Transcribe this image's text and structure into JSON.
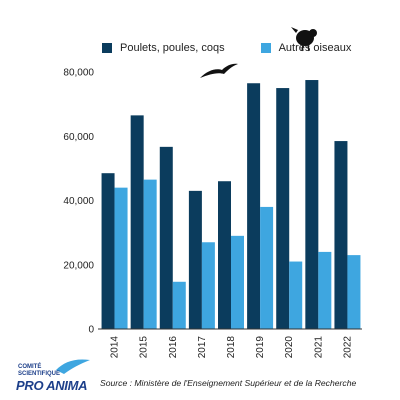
{
  "chart_data": {
    "type": "bar",
    "categories": [
      "2014",
      "2015",
      "2016",
      "2017",
      "2018",
      "2019",
      "2020",
      "2021",
      "2022"
    ],
    "series": [
      {
        "name": "Poulets, poules, coqs",
        "color": "#0b3c5d",
        "values": [
          48500,
          66500,
          56700,
          43000,
          46000,
          76500,
          75000,
          77500,
          58500
        ]
      },
      {
        "name": "Autres oiseaux",
        "color": "#3ea6e0",
        "values": [
          44000,
          46500,
          14700,
          27000,
          29000,
          38000,
          21000,
          24000,
          23000
        ]
      }
    ],
    "ylim": [
      0,
      80000
    ],
    "y_ticks": [
      "0",
      "20,000",
      "40,000",
      "60,000",
      "80,000"
    ],
    "grid": false,
    "legend": "top"
  },
  "source": "Source : Ministère de l'Enseignement Supérieur et de la Recherche",
  "logo": {
    "line1": "COMITÉ",
    "line2": "SCIENTIFIQUE",
    "line3": "PRO ANIMA"
  },
  "icons": [
    "bird-silhouette-icon",
    "hen-silhouette-icon",
    "pro-anima-bird-logo-icon"
  ]
}
